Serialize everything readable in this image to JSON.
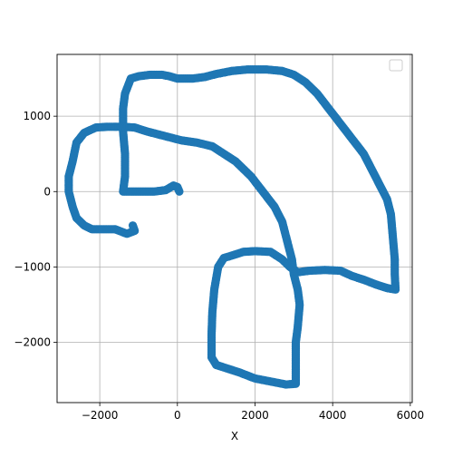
{
  "chart_data": {
    "type": "scatter",
    "title": "",
    "xlabel": "X",
    "ylabel": "",
    "xlim": [
      -3100,
      6050
    ],
    "ylim": [
      -2800,
      1820
    ],
    "xticks": [
      -2000,
      0,
      2000,
      4000,
      6000
    ],
    "yticks": [
      -2000,
      -1000,
      0,
      1000
    ],
    "xtick_labels": [
      "−2000",
      "0",
      "2000",
      "4000",
      "6000"
    ],
    "ytick_labels": [
      "−2000",
      "−1000",
      "0",
      "1000"
    ],
    "grid": true,
    "legend": {
      "placement": "top-right",
      "entries": []
    },
    "marker_color": "#1f77b4",
    "series": [
      {
        "points": [
          [
            50,
            0
          ],
          [
            0,
            60
          ],
          [
            -100,
            80
          ],
          [
            -300,
            20
          ],
          [
            -600,
            0
          ],
          [
            -900,
            0
          ],
          [
            -1200,
            0
          ],
          [
            -1400,
            0
          ],
          [
            -1350,
            200
          ],
          [
            -1350,
            500
          ],
          [
            -1400,
            800
          ],
          [
            -1400,
            1100
          ],
          [
            -1350,
            1300
          ],
          [
            -1200,
            1500
          ],
          [
            -1000,
            1530
          ],
          [
            -700,
            1550
          ],
          [
            -400,
            1550
          ],
          [
            -200,
            1530
          ],
          [
            0,
            1500
          ],
          [
            400,
            1500
          ],
          [
            700,
            1520
          ],
          [
            1000,
            1560
          ],
          [
            1400,
            1600
          ],
          [
            1800,
            1620
          ],
          [
            2300,
            1620
          ],
          [
            2700,
            1600
          ],
          [
            3000,
            1550
          ],
          [
            3300,
            1450
          ],
          [
            3600,
            1300
          ],
          [
            3900,
            1100
          ],
          [
            4200,
            900
          ],
          [
            4500,
            700
          ],
          [
            4800,
            500
          ],
          [
            5000,
            300
          ],
          [
            5200,
            100
          ],
          [
            5400,
            -100
          ],
          [
            5500,
            -300
          ],
          [
            5550,
            -600
          ],
          [
            5600,
            -900
          ],
          [
            5600,
            -1100
          ],
          [
            5620,
            -1300
          ],
          [
            5400,
            -1280
          ],
          [
            5100,
            -1230
          ],
          [
            4800,
            -1170
          ],
          [
            4500,
            -1120
          ],
          [
            4200,
            -1050
          ],
          [
            3800,
            -1040
          ],
          [
            3400,
            -1050
          ],
          [
            3100,
            -1070
          ],
          [
            2900,
            -1000
          ],
          [
            2700,
            -900
          ],
          [
            2400,
            -800
          ],
          [
            2000,
            -790
          ],
          [
            1700,
            -800
          ],
          [
            1400,
            -850
          ],
          [
            1200,
            -880
          ],
          [
            1050,
            -1000
          ],
          [
            950,
            -1300
          ],
          [
            900,
            -1600
          ],
          [
            880,
            -1900
          ],
          [
            880,
            -2200
          ],
          [
            1000,
            -2300
          ],
          [
            1300,
            -2350
          ],
          [
            1600,
            -2400
          ],
          [
            2000,
            -2480
          ],
          [
            2400,
            -2520
          ],
          [
            2800,
            -2560
          ],
          [
            3050,
            -2550
          ],
          [
            3050,
            -2300
          ],
          [
            3050,
            -2000
          ],
          [
            3100,
            -1800
          ],
          [
            3150,
            -1500
          ],
          [
            3100,
            -1300
          ],
          [
            3000,
            -1100
          ],
          [
            2950,
            -900
          ],
          [
            2800,
            -600
          ],
          [
            2700,
            -400
          ],
          [
            2500,
            -200
          ],
          [
            2200,
            0
          ],
          [
            1900,
            200
          ],
          [
            1500,
            400
          ],
          [
            1200,
            500
          ],
          [
            900,
            600
          ],
          [
            500,
            650
          ],
          [
            100,
            680
          ],
          [
            -200,
            720
          ],
          [
            -500,
            760
          ],
          [
            -800,
            800
          ],
          [
            -1100,
            850
          ],
          [
            -1400,
            860
          ],
          [
            -1800,
            860
          ],
          [
            -2100,
            850
          ],
          [
            -2400,
            780
          ],
          [
            -2600,
            650
          ],
          [
            -2700,
            400
          ],
          [
            -2800,
            200
          ],
          [
            -2800,
            0
          ],
          [
            -2700,
            -200
          ],
          [
            -2600,
            -350
          ],
          [
            -2400,
            -450
          ],
          [
            -2200,
            -500
          ],
          [
            -1900,
            -500
          ],
          [
            -1600,
            -500
          ],
          [
            -1300,
            -560
          ],
          [
            -1100,
            -520
          ],
          [
            -1150,
            -450
          ]
        ]
      }
    ]
  }
}
